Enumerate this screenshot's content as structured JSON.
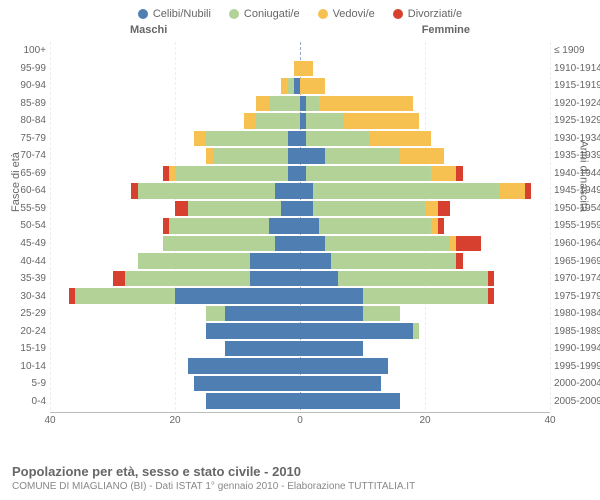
{
  "legend": [
    {
      "label": "Celibi/Nubili",
      "color": "#4f7eb3"
    },
    {
      "label": "Coniugati/e",
      "color": "#b3d298"
    },
    {
      "label": "Vedovi/e",
      "color": "#f7c152"
    },
    {
      "label": "Divorziati/e",
      "color": "#d73f2f"
    }
  ],
  "gender_labels": {
    "male": "Maschi",
    "female": "Femmine"
  },
  "y_left_title": "Fasce di età",
  "y_right_title": "Anni di nascita",
  "x_axis": {
    "max": 40,
    "ticks": [
      40,
      20,
      0,
      20,
      40
    ]
  },
  "title": "Popolazione per età, sesso e stato civile - 2010",
  "subtitle": "COMUNE DI MIAGLIANO (BI) - Dati ISTAT 1° gennaio 2010 - Elaborazione TUTTITALIA.IT",
  "chart": {
    "colors": {
      "celibi": "#4f7eb3",
      "coniugati": "#b3d298",
      "vedovi": "#f7c152",
      "divorziati": "#d73f2f"
    },
    "grid_color": "#eeeeee",
    "center_line_color": "#95a9c8",
    "background_color": "#ffffff",
    "rows": [
      {
        "age": "100+",
        "birth": "≤ 1909",
        "male": [
          0,
          0,
          0,
          0
        ],
        "female": [
          0,
          0,
          0,
          0
        ]
      },
      {
        "age": "95-99",
        "birth": "1910-1914",
        "male": [
          0,
          0,
          1,
          0
        ],
        "female": [
          0,
          0,
          2,
          0
        ]
      },
      {
        "age": "90-94",
        "birth": "1915-1919",
        "male": [
          1,
          1,
          1,
          0
        ],
        "female": [
          0,
          0,
          4,
          0
        ]
      },
      {
        "age": "85-89",
        "birth": "1920-1924",
        "male": [
          0,
          5,
          2,
          0
        ],
        "female": [
          1,
          2,
          15,
          0
        ]
      },
      {
        "age": "80-84",
        "birth": "1925-1929",
        "male": [
          0,
          7,
          2,
          0
        ],
        "female": [
          1,
          6,
          12,
          0
        ]
      },
      {
        "age": "75-79",
        "birth": "1930-1934",
        "male": [
          2,
          13,
          2,
          0
        ],
        "female": [
          1,
          10,
          10,
          0
        ]
      },
      {
        "age": "70-74",
        "birth": "1935-1939",
        "male": [
          2,
          12,
          1,
          0
        ],
        "female": [
          4,
          12,
          7,
          0
        ]
      },
      {
        "age": "65-69",
        "birth": "1940-1944",
        "male": [
          2,
          18,
          1,
          1
        ],
        "female": [
          1,
          20,
          4,
          1
        ]
      },
      {
        "age": "60-64",
        "birth": "1945-1949",
        "male": [
          4,
          22,
          0,
          1
        ],
        "female": [
          2,
          30,
          4,
          1
        ]
      },
      {
        "age": "55-59",
        "birth": "1950-1954",
        "male": [
          3,
          15,
          0,
          2
        ],
        "female": [
          2,
          18,
          2,
          2
        ]
      },
      {
        "age": "50-54",
        "birth": "1955-1959",
        "male": [
          5,
          16,
          0,
          1
        ],
        "female": [
          3,
          18,
          1,
          1
        ]
      },
      {
        "age": "45-49",
        "birth": "1960-1964",
        "male": [
          4,
          18,
          0,
          0
        ],
        "female": [
          4,
          20,
          1,
          4
        ]
      },
      {
        "age": "40-44",
        "birth": "1965-1969",
        "male": [
          8,
          18,
          0,
          0
        ],
        "female": [
          5,
          20,
          0,
          1
        ]
      },
      {
        "age": "35-39",
        "birth": "1970-1974",
        "male": [
          8,
          20,
          0,
          2
        ],
        "female": [
          6,
          24,
          0,
          1
        ]
      },
      {
        "age": "30-34",
        "birth": "1975-1979",
        "male": [
          20,
          16,
          0,
          1
        ],
        "female": [
          10,
          20,
          0,
          1
        ]
      },
      {
        "age": "25-29",
        "birth": "1980-1984",
        "male": [
          12,
          3,
          0,
          0
        ],
        "female": [
          10,
          6,
          0,
          0
        ]
      },
      {
        "age": "20-24",
        "birth": "1985-1989",
        "male": [
          15,
          0,
          0,
          0
        ],
        "female": [
          18,
          1,
          0,
          0
        ]
      },
      {
        "age": "15-19",
        "birth": "1990-1994",
        "male": [
          12,
          0,
          0,
          0
        ],
        "female": [
          10,
          0,
          0,
          0
        ]
      },
      {
        "age": "10-14",
        "birth": "1995-1999",
        "male": [
          18,
          0,
          0,
          0
        ],
        "female": [
          14,
          0,
          0,
          0
        ]
      },
      {
        "age": "5-9",
        "birth": "2000-2004",
        "male": [
          17,
          0,
          0,
          0
        ],
        "female": [
          13,
          0,
          0,
          0
        ]
      },
      {
        "age": "0-4",
        "birth": "2005-2009",
        "male": [
          15,
          0,
          0,
          0
        ],
        "female": [
          16,
          0,
          0,
          0
        ]
      }
    ]
  }
}
